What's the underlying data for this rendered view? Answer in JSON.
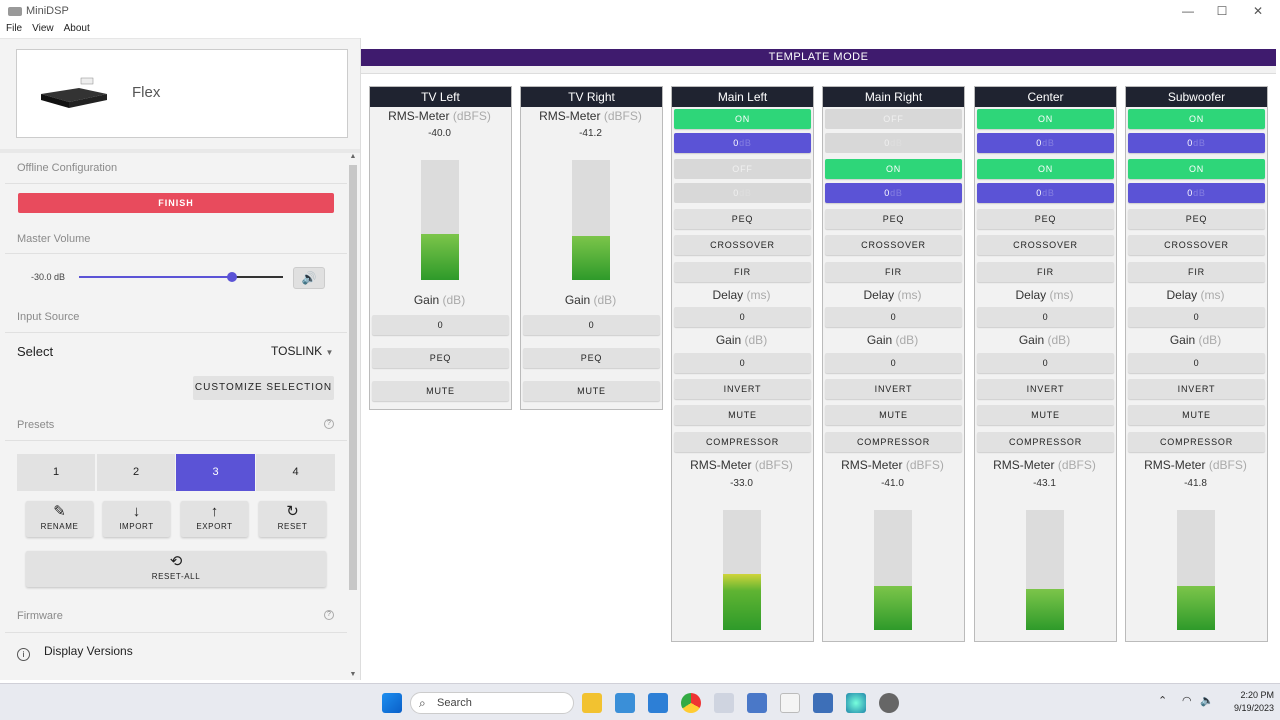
{
  "window": {
    "title": "MiniDSP",
    "minimize": "—",
    "maximize": "☐",
    "close": "✕"
  },
  "menu": [
    "File",
    "View",
    "About"
  ],
  "device": {
    "name": "Flex"
  },
  "left": {
    "offline_section": "Offline Configuration",
    "finish_label": "FINISH",
    "master_volume_section": "Master Volume",
    "volume_value": "-30.0 dB",
    "volume_level": 0.75,
    "input_source_section": "Input Source",
    "select_label": "Select",
    "select_value": "TOSLINK",
    "customize_label": "CUSTOMIZE SELECTION",
    "presets_section": "Presets",
    "presets": [
      "1",
      "2",
      "3",
      "4"
    ],
    "selected_preset": "3",
    "actions": [
      {
        "label": "RENAME",
        "icon": "edit-icon"
      },
      {
        "label": "IMPORT",
        "icon": "download-arrow-icon"
      },
      {
        "label": "EXPORT",
        "icon": "upload-arrow-icon"
      },
      {
        "label": "RESET",
        "icon": "refresh-icon"
      }
    ],
    "reset_all_label": "RESET-ALL",
    "firmware_section": "Firmware",
    "display_versions": "Display Versions"
  },
  "banner": "TEMPLATE MODE",
  "labels": {
    "rms_meter": "RMS-Meter",
    "dbfs": "(dBFS)",
    "gain": "Gain",
    "db": "(dB)",
    "delay": "Delay",
    "ms": "(ms)",
    "on": "ON",
    "off": "OFF",
    "peq": "PEQ",
    "crossover": "CROSSOVER",
    "fir": "FIR",
    "invert": "INVERT",
    "mute": "MUTE",
    "compressor": "COMPRESSOR",
    "zero": "0",
    "db_short": "dB"
  },
  "inputs": [
    {
      "name": "TV Left",
      "rms": "-40.0",
      "level": 0.38,
      "gain": "0"
    },
    {
      "name": "TV Right",
      "rms": "-41.2",
      "level": 0.37,
      "gain": "0"
    }
  ],
  "outputs": [
    {
      "name": "Main Left",
      "row1": "ON",
      "row1_active": true,
      "gain1": "0",
      "row2": "OFF",
      "row2_active": false,
      "gain2": "0",
      "delay": "0",
      "gain": "0",
      "rms": "-33.0",
      "level": 0.47,
      "yellow": true
    },
    {
      "name": "Main Right",
      "row1": "OFF",
      "row1_active": false,
      "gain1": "0",
      "row2": "ON",
      "row2_active": true,
      "gain2": "0",
      "delay": "0",
      "gain": "0",
      "rms": "-41.0",
      "level": 0.37,
      "yellow": false
    },
    {
      "name": "Center",
      "row1": "ON",
      "row1_active": true,
      "gain1": "0",
      "row2": "ON",
      "row2_active": true,
      "gain2": "0",
      "delay": "0",
      "gain": "0",
      "rms": "-43.1",
      "level": 0.34,
      "yellow": false
    },
    {
      "name": "Subwoofer",
      "row1": "ON",
      "row1_active": true,
      "gain1": "0",
      "row2": "ON",
      "row2_active": true,
      "gain2": "0",
      "delay": "0",
      "gain": "0",
      "rms": "-41.8",
      "level": 0.37,
      "yellow": false
    }
  ],
  "taskbar": {
    "search_placeholder": "Search",
    "time": "2:20 PM",
    "date": "9/19/2023"
  }
}
